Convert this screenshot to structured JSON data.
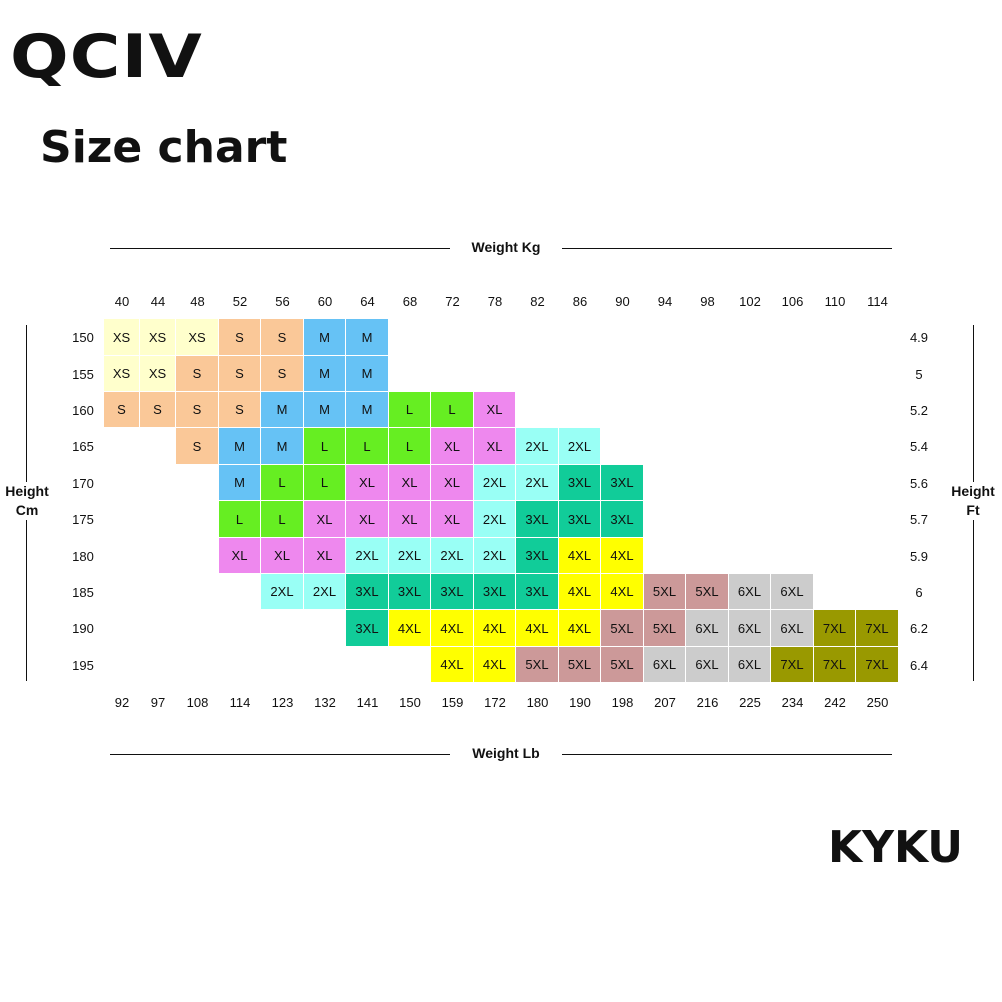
{
  "brand_top": "QCIV",
  "title": "Size chart",
  "brand_bottom": "KYKU",
  "size_colors": {
    "XS": "#ffffcc",
    "S": "#fac898",
    "M": "#66c2f5",
    "L": "#66ee22",
    "XL": "#ee88ee",
    "2XL": "#99fff5",
    "3XL": "#11cc99",
    "4XL": "#ffff00",
    "5XL": "#cc9999",
    "6XL": "#cccccc",
    "7XL": "#999900"
  },
  "chart_data": {
    "type": "table",
    "top_axis_title": "Weight Kg",
    "bottom_axis_title": "Weight Lb",
    "left_axis_title_line1": "Height",
    "left_axis_title_line2": "Cm",
    "right_axis_title_line1": "Height",
    "right_axis_title_line2": "Ft",
    "weight_kg": [
      "40",
      "44",
      "48",
      "52",
      "56",
      "60",
      "64",
      "68",
      "72",
      "78",
      "82",
      "86",
      "90",
      "94",
      "98",
      "102",
      "106",
      "110",
      "114"
    ],
    "weight_lb": [
      "92",
      "97",
      "108",
      "114",
      "123",
      "132",
      "141",
      "150",
      "159",
      "172",
      "180",
      "190",
      "198",
      "207",
      "216",
      "225",
      "234",
      "242",
      "250"
    ],
    "height_cm": [
      "150",
      "155",
      "160",
      "165",
      "170",
      "175",
      "180",
      "185",
      "190",
      "195"
    ],
    "height_ft": [
      "4.9",
      "5",
      "5.2",
      "5.4",
      "5.6",
      "5.7",
      "5.9",
      "6",
      "6.2",
      "6.4"
    ],
    "rows": [
      [
        "XS",
        "XS",
        "XS",
        "S",
        "S",
        "M",
        "M",
        "",
        "",
        "",
        "",
        "",
        "",
        "",
        "",
        "",
        "",
        "",
        ""
      ],
      [
        "XS",
        "XS",
        "S",
        "S",
        "S",
        "M",
        "M",
        "",
        "",
        "",
        "",
        "",
        "",
        "",
        "",
        "",
        "",
        "",
        ""
      ],
      [
        "S",
        "S",
        "S",
        "S",
        "M",
        "M",
        "M",
        "L",
        "L",
        "XL",
        "",
        "",
        "",
        "",
        "",
        "",
        "",
        "",
        ""
      ],
      [
        "",
        "",
        "S",
        "M",
        "M",
        "L",
        "L",
        "L",
        "XL",
        "XL",
        "2XL",
        "2XL",
        "",
        "",
        "",
        "",
        "",
        "",
        ""
      ],
      [
        "",
        "",
        "",
        "M",
        "L",
        "L",
        "XL",
        "XL",
        "XL",
        "2XL",
        "2XL",
        "3XL",
        "3XL",
        "",
        "",
        "",
        "",
        "",
        ""
      ],
      [
        "",
        "",
        "",
        "L",
        "L",
        "XL",
        "XL",
        "XL",
        "XL",
        "2XL",
        "3XL",
        "3XL",
        "3XL",
        "",
        "",
        "",
        "",
        "",
        ""
      ],
      [
        "",
        "",
        "",
        "XL",
        "XL",
        "XL",
        "2XL",
        "2XL",
        "2XL",
        "2XL",
        "3XL",
        "4XL",
        "4XL",
        "",
        "",
        "",
        "",
        "",
        ""
      ],
      [
        "",
        "",
        "",
        "",
        "2XL",
        "2XL",
        "3XL",
        "3XL",
        "3XL",
        "3XL",
        "3XL",
        "4XL",
        "4XL",
        "5XL",
        "5XL",
        "6XL",
        "6XL",
        "",
        ""
      ],
      [
        "",
        "",
        "",
        "",
        "",
        "",
        "3XL",
        "4XL",
        "4XL",
        "4XL",
        "4XL",
        "4XL",
        "5XL",
        "5XL",
        "6XL",
        "6XL",
        "6XL",
        "7XL",
        "7XL"
      ],
      [
        "",
        "",
        "",
        "",
        "",
        "",
        "",
        "",
        "4XL",
        "4XL",
        "5XL",
        "5XL",
        "5XL",
        "6XL",
        "6XL",
        "6XL",
        "7XL",
        "7XL",
        "7XL"
      ]
    ]
  }
}
